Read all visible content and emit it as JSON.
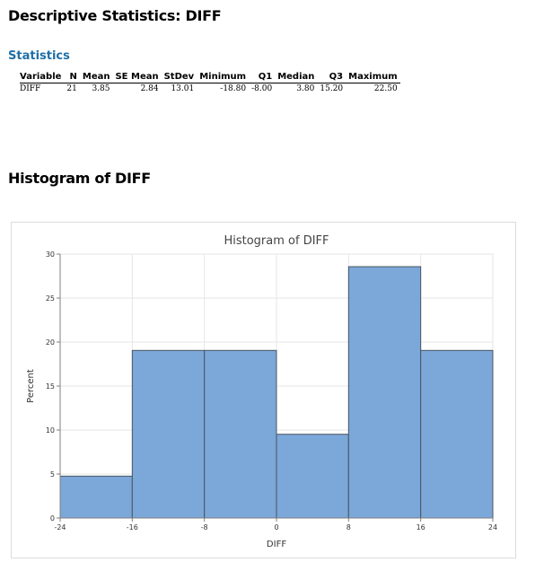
{
  "page_title": "Descriptive Statistics: DIFF",
  "stats_section_title": "Statistics",
  "stats_table": {
    "headers": [
      "Variable",
      "N",
      "Mean",
      "SE Mean",
      "StDev",
      "Minimum",
      "Q1",
      "Median",
      "Q3",
      "Maximum"
    ],
    "rows": [
      [
        "DIFF",
        "21",
        "3.85",
        "2.84",
        "13.01",
        "-18.80",
        "-8.00",
        "3.80",
        "15.20",
        "22.50"
      ]
    ]
  },
  "histogram_section_title": "Histogram of DIFF",
  "colors": {
    "bar_fill": "#7ba7d9",
    "bar_stroke": "#4a5560",
    "section_accent": "#1f6fa8"
  },
  "chart_data": {
    "type": "bar",
    "title": "Histogram of DIFF",
    "xlabel": "DIFF",
    "ylabel": "Percent",
    "bins": [
      {
        "from": -24,
        "to": -16,
        "value": 4.76
      },
      {
        "from": -16,
        "to": -8,
        "value": 19.05
      },
      {
        "from": -8,
        "to": 0,
        "value": 19.05
      },
      {
        "from": 0,
        "to": 8,
        "value": 9.52
      },
      {
        "from": 8,
        "to": 16,
        "value": 28.57
      },
      {
        "from": 16,
        "to": 24,
        "value": 19.05
      }
    ],
    "xlim": [
      -24,
      24
    ],
    "ylim": [
      0,
      30
    ],
    "xticks": [
      "-24",
      "-16",
      "-8",
      "0",
      "8",
      "16",
      "24"
    ],
    "yticks": [
      "0",
      "5",
      "10",
      "15",
      "20",
      "25",
      "30"
    ],
    "grid": true
  }
}
